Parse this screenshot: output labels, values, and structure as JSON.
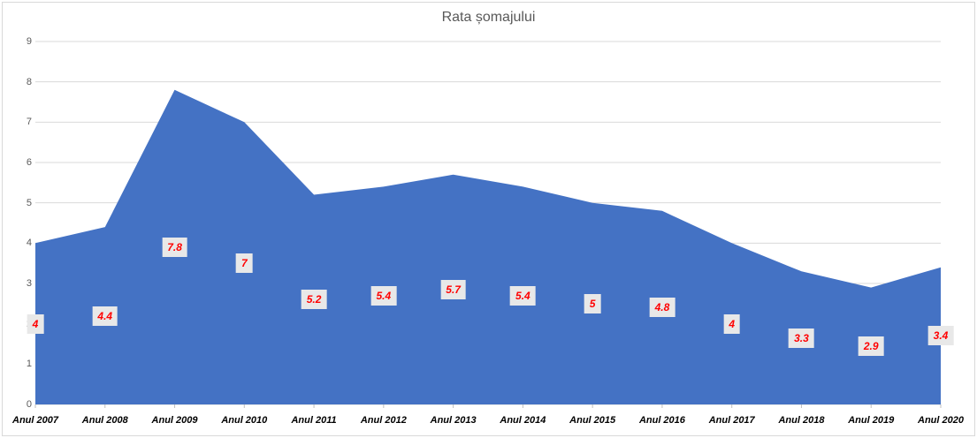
{
  "chart": {
    "title": "Rata șomajului"
  },
  "chart_data": {
    "type": "area",
    "title": "Rata șomajului",
    "categories": [
      "Anul 2007",
      "Anul 2008",
      "Anul 2009",
      "Anul 2010",
      "Anul 2011",
      "Anul 2012",
      "Anul 2013",
      "Anul 2014",
      "Anul 2015",
      "Anul 2016",
      "Anul 2017",
      "Anul 2018",
      "Anul 2019",
      "Anul 2020"
    ],
    "values": [
      4,
      4.4,
      7.8,
      7,
      5.2,
      5.4,
      5.7,
      5.4,
      5,
      4.8,
      4,
      3.3,
      2.9,
      3.4
    ],
    "data_labels": [
      "4",
      "4.4",
      "7.8",
      "7",
      "5.2",
      "5.4",
      "5.7",
      "5.4",
      "5",
      "4.8",
      "4",
      "3.3",
      "2.9",
      "3.4"
    ],
    "xlabel": "",
    "ylabel": "",
    "ylim": [
      0,
      9
    ],
    "yticks": [
      0,
      1,
      2,
      3,
      4,
      5,
      6,
      7,
      8,
      9
    ],
    "grid": true,
    "legend": false,
    "style": {
      "area_fill": "#4472C4",
      "gridline_color": "#D9D9D9",
      "axis_line_color": "#D9D9D9",
      "tick_color": "#BFBFBF",
      "title_color": "#595959",
      "y_label_color": "#595959",
      "x_label_color": "#000000",
      "data_label_text": "#FF0000",
      "data_label_bg": "#E8E8E8",
      "frame_color": "#D9D9D9"
    }
  }
}
